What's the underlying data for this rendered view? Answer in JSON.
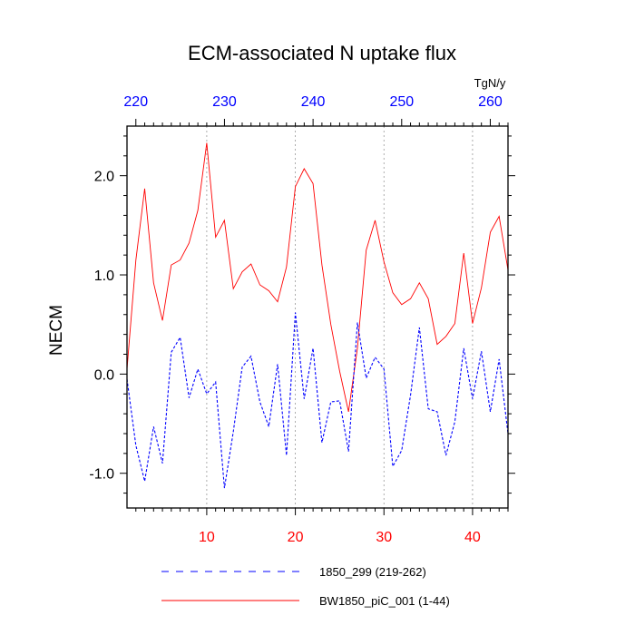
{
  "chart_data": {
    "type": "line",
    "title": "ECM-associated N uptake flux",
    "ylabel": "NECM",
    "units_label": "TgN/y",
    "xlim": [
      1,
      44
    ],
    "ylim": [
      -1.35,
      2.5
    ],
    "bottom_axis": {
      "ticks": [
        10,
        20,
        30,
        40
      ],
      "tick_labels": [
        "10",
        "20",
        "30",
        "40"
      ],
      "color": "#ff0000"
    },
    "top_axis": {
      "offset": 218,
      "ticks": [
        220,
        230,
        240,
        250,
        260
      ],
      "tick_labels": [
        "220",
        "230",
        "240",
        "250",
        "260"
      ],
      "color": "#0000ff"
    },
    "y_ticks": [
      -1.0,
      0.0,
      1.0,
      2.0
    ],
    "y_tick_labels": [
      "-1.0",
      "0.0",
      "1.0",
      "2.0"
    ],
    "x": [
      1,
      2,
      3,
      4,
      5,
      6,
      7,
      8,
      9,
      10,
      11,
      12,
      13,
      14,
      15,
      16,
      17,
      18,
      19,
      20,
      21,
      22,
      23,
      24,
      25,
      26,
      27,
      28,
      29,
      30,
      31,
      32,
      33,
      34,
      35,
      36,
      37,
      38,
      39,
      40,
      41,
      42,
      43,
      44
    ],
    "series": [
      {
        "name": "BW1850_piC_001 (1-44)",
        "color": "#ff0000",
        "dash": "solid",
        "values": [
          0.05,
          1.15,
          1.87,
          0.92,
          0.54,
          1.1,
          1.15,
          1.32,
          1.65,
          2.33,
          1.38,
          1.55,
          0.86,
          1.03,
          1.11,
          0.9,
          0.84,
          0.73,
          1.08,
          1.89,
          2.07,
          1.92,
          1.1,
          0.5,
          0.03,
          -0.38,
          0.26,
          1.25,
          1.55,
          1.13,
          0.82,
          0.7,
          0.76,
          0.92,
          0.76,
          0.3,
          0.38,
          0.51,
          1.22,
          0.51,
          0.87,
          1.43,
          1.59,
          1.05
        ]
      },
      {
        "name": "1850_299 (219-262)",
        "color": "#0000ff",
        "dash": "dashed",
        "values": [
          -0.05,
          -0.72,
          -1.08,
          -0.53,
          -0.9,
          0.22,
          0.37,
          -0.24,
          0.05,
          -0.2,
          -0.08,
          -1.15,
          -0.58,
          0.07,
          0.18,
          -0.28,
          -0.53,
          0.1,
          -0.82,
          0.62,
          -0.25,
          0.26,
          -0.69,
          -0.28,
          -0.27,
          -0.78,
          0.52,
          -0.04,
          0.17,
          0.05,
          -0.93,
          -0.77,
          -0.21,
          0.47,
          -0.35,
          -0.38,
          -0.82,
          -0.48,
          0.26,
          -0.25,
          0.23,
          -0.38,
          0.15,
          -0.6
        ]
      }
    ],
    "legend": [
      {
        "label": "1850_299 (219-262)",
        "color": "#0000ff",
        "dash": "dashed"
      },
      {
        "label": "BW1850_piC_001 (1-44)",
        "color": "#ff0000",
        "dash": "solid"
      }
    ],
    "legend_position": "bottom",
    "grid": "vertical dotted at bottom-axis ticks"
  }
}
